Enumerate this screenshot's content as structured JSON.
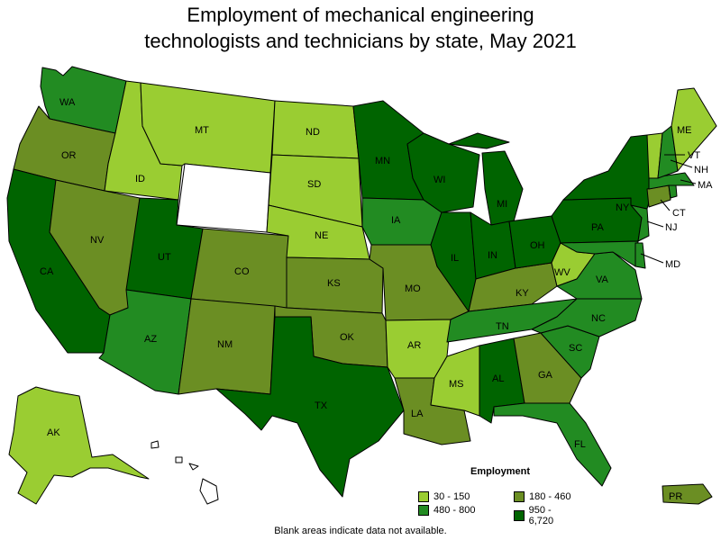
{
  "title_line1": "Employment of mechanical engineering",
  "title_line2": "technologists and technicians by state, May 2021",
  "legend": {
    "title": "Employment",
    "items": [
      {
        "label": "30 - 150",
        "color": "#9acd32"
      },
      {
        "label": "180 - 460",
        "color": "#6b8e23"
      },
      {
        "label": "480 - 800",
        "color": "#228b22"
      },
      {
        "label": "950 - 6,720",
        "color": "#006400"
      }
    ]
  },
  "footnote": "Blank areas indicate data not available.",
  "state_labels": {
    "WA": "WA",
    "OR": "OR",
    "CA": "CA",
    "ID": "ID",
    "NV": "NV",
    "MT": "MT",
    "UT": "UT",
    "AZ": "AZ",
    "CO": "CO",
    "NM": "NM",
    "ND": "ND",
    "SD": "SD",
    "NE": "NE",
    "KS": "KS",
    "OK": "OK",
    "TX": "TX",
    "MN": "MN",
    "IA": "IA",
    "MO": "MO",
    "AR": "AR",
    "LA": "LA",
    "WI": "WI",
    "IL": "IL",
    "MS": "MS",
    "MI": "MI",
    "IN": "IN",
    "KY": "KY",
    "TN": "TN",
    "AL": "AL",
    "OH": "OH",
    "WV": "WV",
    "GA": "GA",
    "FL": "FL",
    "SC": "SC",
    "NC": "NC",
    "VA": "VA",
    "PA": "PA",
    "NY": "NY",
    "ME": "ME",
    "VT": "VT",
    "NH": "NH",
    "MA": "MA",
    "CT": "CT",
    "NJ": "NJ",
    "MD": "MD",
    "AK": "AK",
    "PR": "PR"
  },
  "state_class": {
    "WA": "480 - 800",
    "OR": "180 - 460",
    "CA": "950 - 6,720",
    "ID": "30 - 150",
    "NV": "180 - 460",
    "MT": "30 - 150",
    "WY": "no data",
    "UT": "950 - 6,720",
    "AZ": "480 - 800",
    "CO": "180 - 460",
    "NM": "180 - 460",
    "ND": "30 - 150",
    "SD": "30 - 150",
    "NE": "30 - 150",
    "KS": "180 - 460",
    "OK": "180 - 460",
    "TX": "950 - 6,720",
    "MN": "950 - 6,720",
    "IA": "480 - 800",
    "MO": "180 - 460",
    "AR": "30 - 150",
    "LA": "180 - 460",
    "WI": "950 - 6,720",
    "IL": "950 - 6,720",
    "MS": "30 - 150",
    "MI": "950 - 6,720",
    "IN": "950 - 6,720",
    "KY": "180 - 460",
    "TN": "480 - 800",
    "AL": "950 - 6,720",
    "OH": "950 - 6,720",
    "WV": "30 - 150",
    "GA": "180 - 460",
    "FL": "480 - 800",
    "SC": "480 - 800",
    "NC": "480 - 800",
    "VA": "480 - 800",
    "PA": "950 - 6,720",
    "NY": "950 - 6,720",
    "ME": "30 - 150",
    "VT": "30 - 150",
    "NH": "480 - 800",
    "MA": "480 - 800",
    "CT": "180 - 460",
    "NJ": "480 - 800",
    "MD": "480 - 800",
    "DE": "480 - 800",
    "RI": "480 - 800",
    "AK": "30 - 150",
    "HI": "no data",
    "PR": "180 - 460"
  }
}
